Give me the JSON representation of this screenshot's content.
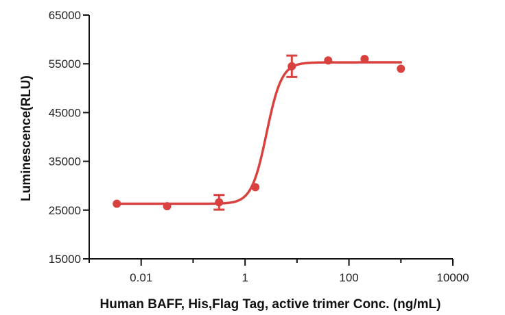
{
  "chart_data": {
    "type": "scatter",
    "xlabel": "Human BAFF, His,Flag Tag, active trimer Conc. (ng/mL)",
    "ylabel": "Luminescence(RLU)",
    "x_scale": "log",
    "xlim": [
      0.001,
      10000
    ],
    "ylim": [
      15000,
      65000
    ],
    "x_ticks": [
      0.01,
      1,
      100,
      10000
    ],
    "x_tick_labels": [
      "0.01",
      "1",
      "100",
      "10000"
    ],
    "y_ticks": [
      15000,
      25000,
      35000,
      45000,
      55000,
      65000
    ],
    "y_tick_labels": [
      "15000",
      "25000",
      "35000",
      "45000",
      "55000",
      "65000"
    ],
    "grid": false,
    "color": "#d9413f",
    "points": [
      {
        "x": 0.0034,
        "y": 26300,
        "err": 0
      },
      {
        "x": 0.0316,
        "y": 25800,
        "err": 0
      },
      {
        "x": 0.316,
        "y": 26600,
        "err": 1500
      },
      {
        "x": 1.58,
        "y": 29700,
        "err": 0
      },
      {
        "x": 7.94,
        "y": 54500,
        "err": 2200
      },
      {
        "x": 39.8,
        "y": 55700,
        "err": 0
      },
      {
        "x": 200,
        "y": 56000,
        "err": 0
      },
      {
        "x": 1000,
        "y": 54000,
        "err": 0
      }
    ],
    "fit": {
      "model": "4PL",
      "bottom": 26300,
      "top": 55300,
      "ec50": 2.6,
      "hill": 3.0,
      "x_range": [
        0.0034,
        1000
      ]
    }
  }
}
